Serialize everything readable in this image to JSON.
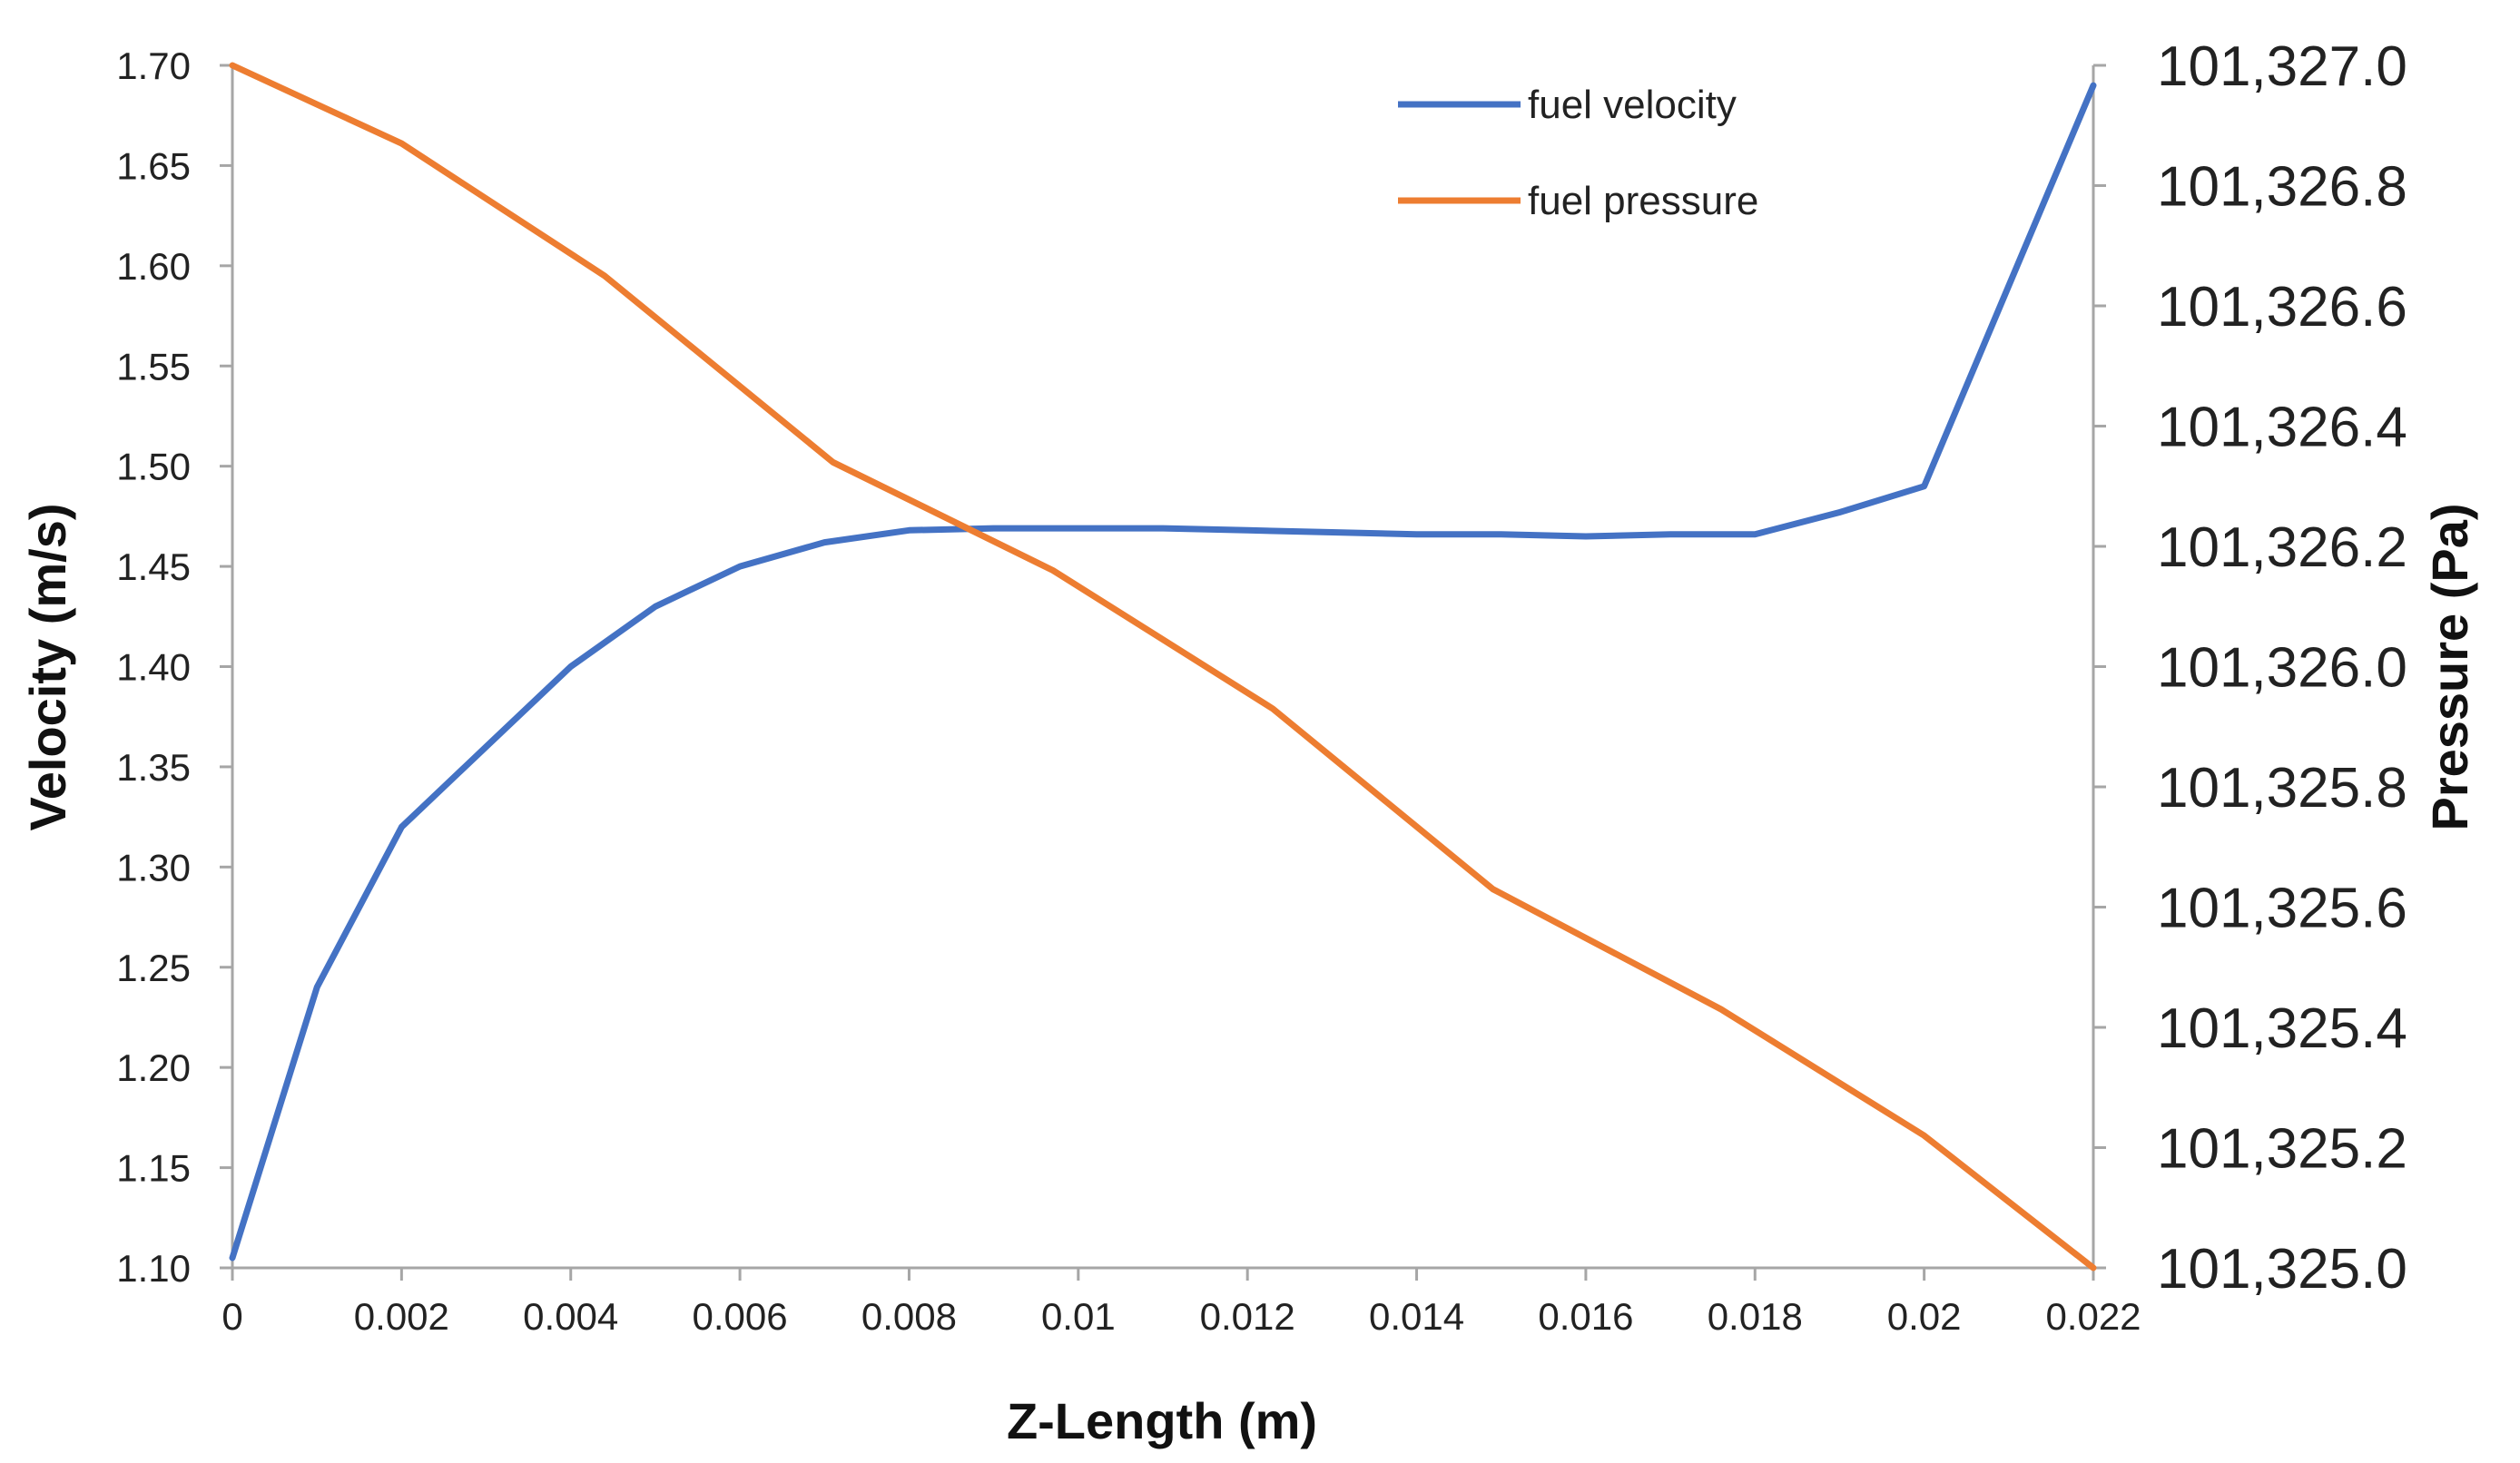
{
  "chart_data": {
    "type": "line",
    "title": "",
    "xlabel": "Z-Length (m)",
    "ylabel": "Velocity (m/s)",
    "y2label": "Pressure (Pa)",
    "xlim": [
      0,
      0.022
    ],
    "ylim": [
      1.1,
      1.7
    ],
    "y2lim": [
      101325.0,
      101327.0
    ],
    "grid": false,
    "legend_position": "top-right",
    "x_ticks": [
      "0",
      "0.002",
      "0.004",
      "0.006",
      "0.008",
      "0.01",
      "0.012",
      "0.014",
      "0.016",
      "0.018",
      "0.02",
      "0.022"
    ],
    "y_ticks": [
      "1.10",
      "1.15",
      "1.20",
      "1.25",
      "1.30",
      "1.35",
      "1.40",
      "1.45",
      "1.50",
      "1.55",
      "1.60",
      "1.65",
      "1.70"
    ],
    "y2_ticks": [
      "101,325.0",
      "101,325.2",
      "101,325.4",
      "101,325.6",
      "101,325.8",
      "101,326.0",
      "101,326.2",
      "101,326.4",
      "101,326.6",
      "101,326.8",
      "101,327.0"
    ],
    "series": [
      {
        "name": "fuel velocity",
        "axis": "left",
        "color": "#4472C4",
        "x": [
          0,
          0.001,
          0.002,
          0.003,
          0.004,
          0.005,
          0.006,
          0.007,
          0.008,
          0.009,
          0.01,
          0.011,
          0.012,
          0.013,
          0.014,
          0.015,
          0.016,
          0.017,
          0.018,
          0.019,
          0.02,
          0.021,
          0.022
        ],
        "values": [
          1.105,
          1.24,
          1.32,
          1.36,
          1.4,
          1.43,
          1.45,
          1.462,
          1.468,
          1.469,
          1.469,
          1.469,
          1.468,
          1.467,
          1.466,
          1.466,
          1.465,
          1.466,
          1.466,
          1.477,
          1.49,
          1.59,
          1.69
        ]
      },
      {
        "name": "fuel pressure",
        "axis": "right",
        "color": "#ED7D31",
        "x": [
          0,
          0.002,
          0.0044,
          0.0071,
          0.0097,
          0.0123,
          0.0149,
          0.0176,
          0.02,
          0.022
        ],
        "values": [
          101327.0,
          101326.87,
          101326.65,
          101326.34,
          101326.16,
          101325.93,
          101325.63,
          101325.43,
          101325.22,
          101325.0
        ]
      }
    ]
  }
}
